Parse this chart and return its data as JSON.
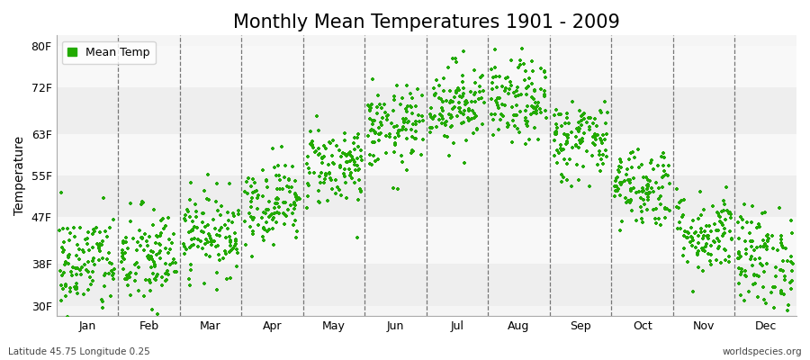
{
  "title": "Monthly Mean Temperatures 1901 - 2009",
  "ylabel": "Temperature",
  "xlabel": "",
  "bottom_left_text": "Latitude 45.75 Longitude 0.25",
  "bottom_right_text": "worldspecies.org",
  "legend_label": "Mean Temp",
  "dot_color": "#22AA00",
  "dot_size": 6,
  "background_color": "#FFFFFF",
  "plot_bg_color": "#F5F5F5",
  "band_colors_h": [
    "#EEEEEE",
    "#F8F8F8"
  ],
  "ytick_labels": [
    "30F",
    "38F",
    "47F",
    "55F",
    "63F",
    "72F",
    "80F"
  ],
  "ytick_values": [
    30,
    38,
    47,
    55,
    63,
    72,
    80
  ],
  "ylim": [
    28,
    82
  ],
  "months": [
    "Jan",
    "Feb",
    "Mar",
    "Apr",
    "May",
    "Jun",
    "Jul",
    "Aug",
    "Sep",
    "Oct",
    "Nov",
    "Dec"
  ],
  "mean_temps_F": [
    38,
    39,
    44,
    50,
    57,
    64,
    69,
    69,
    62,
    53,
    44,
    39
  ],
  "std_temps_F": [
    5,
    5,
    4,
    4,
    4,
    4,
    4,
    4,
    4,
    4,
    4,
    5
  ],
  "num_years": 109,
  "title_fontsize": 15,
  "axis_label_fontsize": 10,
  "tick_fontsize": 9,
  "legend_fontsize": 9
}
